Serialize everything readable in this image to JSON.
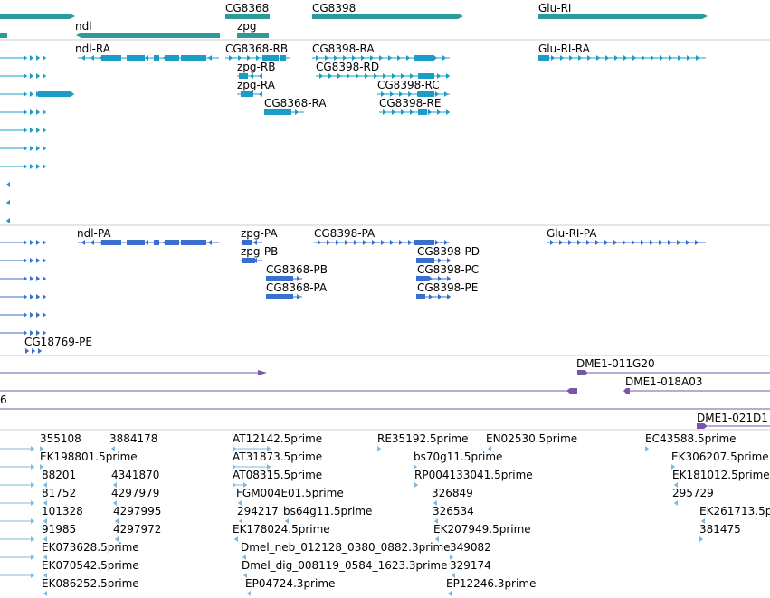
{
  "colors": {
    "genes": "#2c9a9a",
    "rna": "#1a9cc6",
    "protein": "#3a6fcf",
    "clones": "#7a56a8",
    "ests": "#7fb9e0",
    "divider": "#cccccc",
    "text": "#000000"
  },
  "tracks": {
    "genes": [
      "CG8368",
      "CG8398",
      "Glu-RI",
      "ndl",
      "zpg"
    ],
    "transcripts": [
      "ndl-RA",
      "CG8368-RB",
      "CG8398-RA",
      "Glu-RI-RA",
      "zpg-RB",
      "CG8398-RD",
      "zpg-RA",
      "CG8398-RC",
      "CG8368-RA",
      "CG8398-RE"
    ],
    "proteins": [
      "ndl-PA",
      "zpg-PA",
      "CG8398-PA",
      "Glu-RI-PA",
      "zpg-PB",
      "CG8398-PD",
      "CG8368-PB",
      "CG8398-PC",
      "CG8368-PA",
      "CG8398-PE",
      "CG18769-PE"
    ],
    "clones": [
      "DME1-011G20",
      "DME1-018A03",
      "6",
      "DME1-021D1"
    ],
    "ests": [
      "355108",
      "3884178",
      "AT12142.5prime",
      "RE35192.5prime",
      "EN02530.5prime",
      "EC43588.5prime",
      "EK198801.5prime",
      "AT31873.5prime",
      "bs70g11.5prime",
      "EK306207.5prime",
      "88201",
      "4341870",
      "AT08315.5prime",
      "RP004133041.5prime",
      "EK181012.5prime",
      "81752",
      "4297979",
      "FGM004E01.5prime",
      "326849",
      "295729",
      "101328",
      "4297995",
      "294217",
      "bs64g11.5prime",
      "326534",
      "EK261713.5p",
      "91985",
      "4297972",
      "EK178024.5prime",
      "EK207949.5prime",
      "381475",
      "EK073628.5prime",
      "Dmel_neb_012128_0380_0882.3prime",
      "349082",
      "EK070542.5prime",
      "Dmel_dig_008119_0584_1623.3prime",
      "329174",
      "EK086252.5prime",
      "EP04724.3prime",
      "EP12246.3prime"
    ]
  }
}
